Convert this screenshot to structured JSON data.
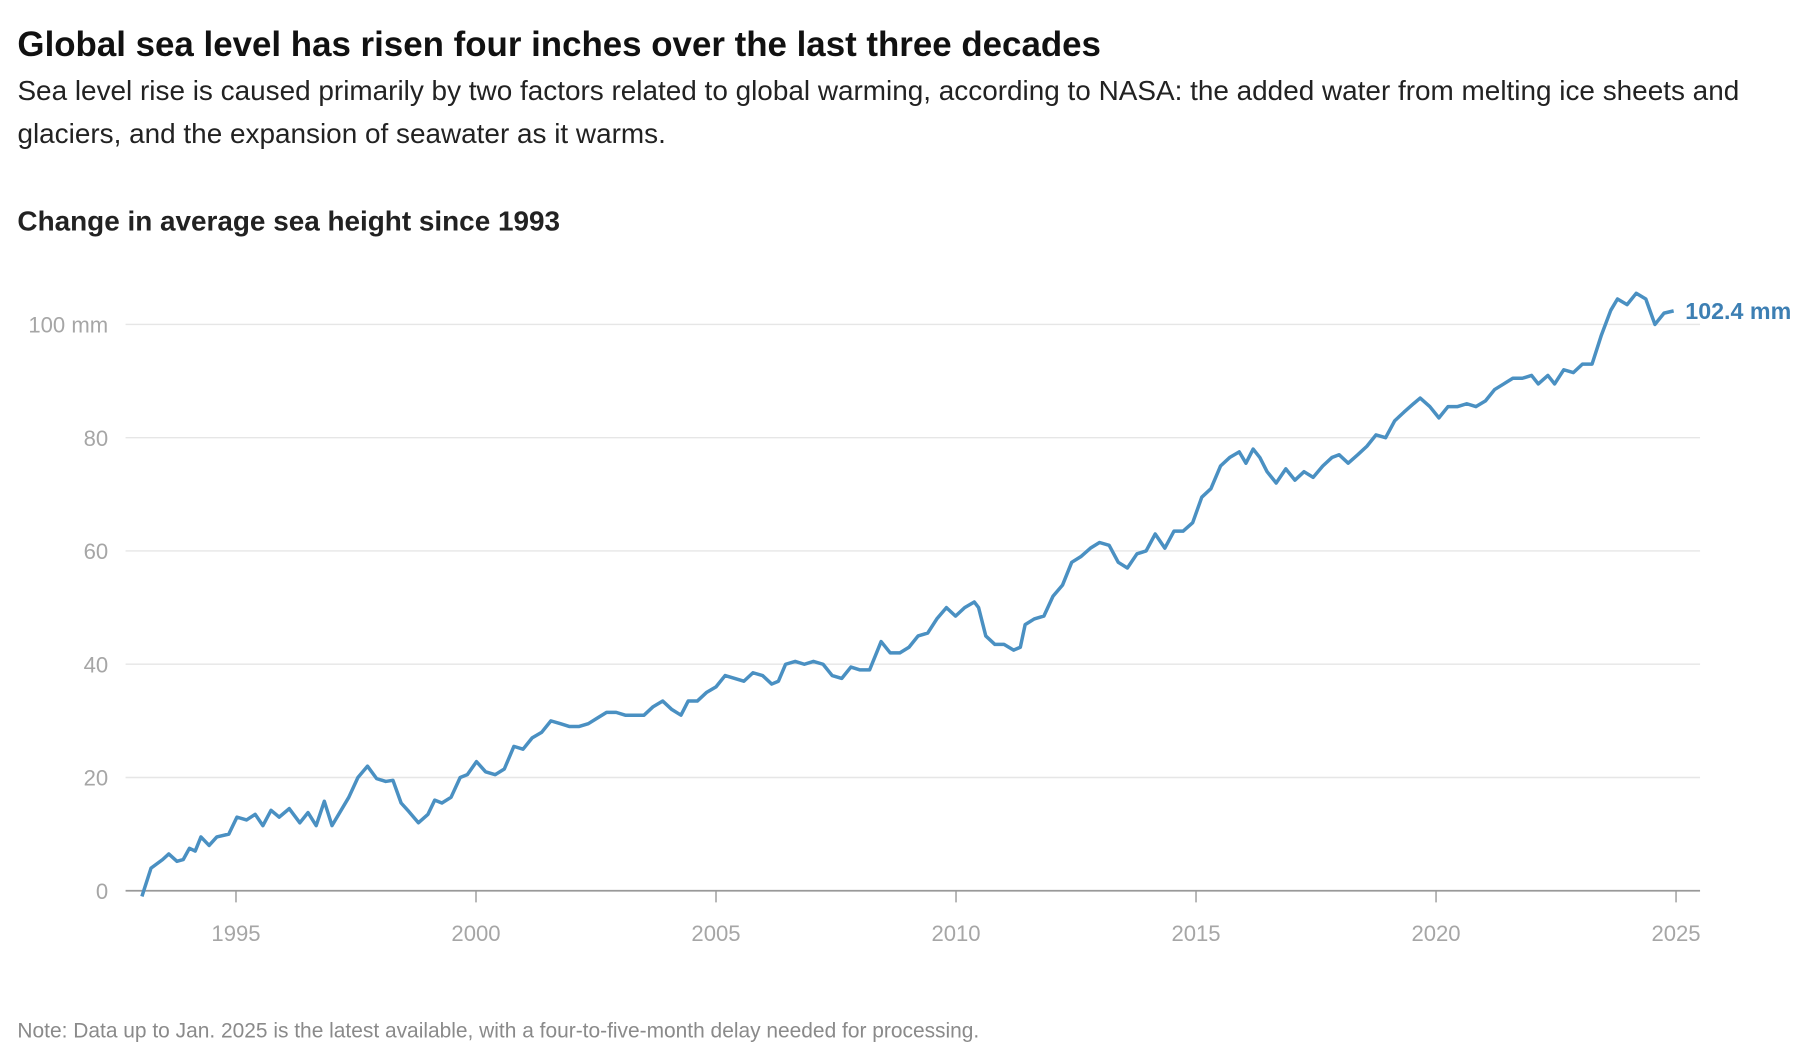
{
  "chart_data": {
    "type": "line",
    "title": "Global sea level has risen four inches over the last three decades",
    "subtitle": "Sea level rise is caused primarily by two factors related to global warming, according to NASA: the added water from melting ice sheets and glaciers, and the expansion of seawater as it warms.",
    "y_label": "Change in average sea height since 1993",
    "note": "Note: Data up to Jan. 2025 is the latest available, with a four-to-five-month delay needed for processing.",
    "end_label": "102.4 mm",
    "color": "#4a90c2",
    "grid": true,
    "xlim": [
      1992.7,
      2025.5
    ],
    "xticks": [
      1995,
      2000,
      2005,
      2010,
      2015,
      2020,
      2025
    ],
    "ylim": [
      -2,
      108
    ],
    "yticks": [
      0,
      20,
      40,
      60,
      80,
      {
        "value": 100,
        "label": "100 mm"
      }
    ],
    "x": [
      1993.04,
      1993.23,
      1993.47,
      1993.6,
      1993.77,
      1993.9,
      1994.03,
      1994.15,
      1994.27,
      1994.44,
      1994.6,
      1994.85,
      1995.02,
      1995.22,
      1995.4,
      1995.56,
      1995.73,
      1995.9,
      1996.11,
      1996.33,
      1996.5,
      1996.67,
      1996.84,
      1997.0,
      1997.35,
      1997.54,
      1997.74,
      1997.93,
      1998.12,
      1998.27,
      1998.44,
      1998.6,
      1998.8,
      1999.0,
      1999.14,
      1999.29,
      1999.48,
      1999.67,
      1999.82,
      2000.01,
      2000.2,
      2000.4,
      2000.59,
      2000.79,
      2000.98,
      2001.17,
      2001.37,
      2001.56,
      2001.76,
      2001.95,
      2002.14,
      2002.34,
      2002.53,
      2002.72,
      2002.92,
      2003.11,
      2003.3,
      2003.5,
      2003.69,
      2003.89,
      2004.08,
      2004.27,
      2004.42,
      2004.61,
      2004.8,
      2005.0,
      2005.19,
      2005.39,
      2005.58,
      2005.77,
      2005.97,
      2006.16,
      2006.3,
      2006.45,
      2006.65,
      2006.84,
      2007.03,
      2007.23,
      2007.42,
      2007.62,
      2007.81,
      2008.0,
      2008.2,
      2008.44,
      2008.63,
      2008.83,
      2009.02,
      2009.21,
      2009.41,
      2009.6,
      2009.8,
      2009.99,
      2010.18,
      2010.38,
      2010.47,
      2010.62,
      2010.81,
      2011.0,
      2011.2,
      2011.34,
      2011.44,
      2011.63,
      2011.83,
      2012.02,
      2012.22,
      2012.41,
      2012.6,
      2012.8,
      2012.99,
      2013.19,
      2013.38,
      2013.57,
      2013.77,
      2013.96,
      2014.15,
      2014.35,
      2014.54,
      2014.73,
      2014.93,
      2015.12,
      2015.31,
      2015.51,
      2015.7,
      2015.9,
      2016.04,
      2016.19,
      2016.33,
      2016.48,
      2016.67,
      2016.87,
      2017.06,
      2017.25,
      2017.44,
      2017.64,
      2017.83,
      2017.98,
      2018.17,
      2018.37,
      2018.56,
      2018.75,
      2018.95,
      2019.14,
      2019.33,
      2019.53,
      2019.67,
      2019.87,
      2020.06,
      2020.25,
      2020.45,
      2020.64,
      2020.83,
      2021.03,
      2021.22,
      2021.41,
      2021.6,
      2021.8,
      2021.99,
      2022.13,
      2022.33,
      2022.47,
      2022.66,
      2022.86,
      2023.05,
      2023.25,
      2023.44,
      2023.64,
      2023.78,
      2023.98,
      2024.17,
      2024.37,
      2024.56,
      2024.75,
      2024.95
    ],
    "values": [
      -1,
      4,
      5.5,
      6.5,
      5.2,
      5.5,
      7.5,
      7,
      9.5,
      8,
      9.5,
      10,
      13,
      12.5,
      13.5,
      11.5,
      14.2,
      13,
      14.5,
      12,
      13.8,
      11.5,
      15.8,
      11.5,
      16.5,
      20,
      22,
      19.8,
      19.3,
      19.5,
      15.5,
      14,
      12,
      13.5,
      16,
      15.5,
      16.5,
      20,
      20.5,
      22.8,
      21,
      20.5,
      21.5,
      25.5,
      25,
      27,
      28,
      30,
      29.5,
      29,
      29,
      29.5,
      30.5,
      31.5,
      31.5,
      31,
      31,
      31,
      32.5,
      33.5,
      32,
      31,
      33.5,
      33.5,
      35,
      36,
      38,
      37.5,
      37,
      38.5,
      38,
      36.5,
      37,
      40,
      40.5,
      40,
      40.5,
      40,
      38,
      37.5,
      39.5,
      39,
      39,
      44,
      42,
      42,
      43,
      45,
      45.5,
      48,
      50,
      48.5,
      50,
      51,
      50,
      45,
      43.5,
      43.5,
      42.5,
      43,
      47,
      48,
      48.5,
      52,
      54,
      58,
      59,
      60.5,
      61.5,
      61,
      58,
      57,
      59.5,
      60,
      63,
      60.5,
      63.5,
      63.5,
      65,
      69.5,
      71,
      75,
      76.5,
      77.5,
      75.5,
      78,
      76.5,
      74,
      72,
      74.5,
      72.5,
      74,
      73,
      75,
      76.5,
      77,
      75.5,
      77,
      78.5,
      80.5,
      80,
      83,
      84.5,
      86,
      87,
      85.5,
      83.5,
      85.5,
      85.5,
      86,
      85.5,
      86.5,
      88.5,
      89.5,
      90.5,
      90.5,
      91,
      89.5,
      91,
      89.5,
      92,
      91.5,
      93,
      93,
      98,
      102.5,
      104.5,
      103.5,
      105.5,
      104.5,
      100,
      102,
      102.4
    ]
  }
}
